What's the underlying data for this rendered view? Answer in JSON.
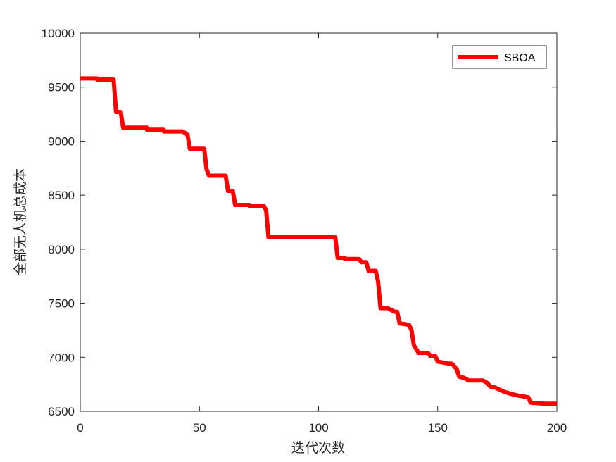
{
  "chart_data": {
    "type": "line",
    "xlabel": "迭代次数",
    "ylabel": "全部无人机总成本",
    "xlim": [
      0,
      200
    ],
    "ylim": [
      6500,
      10000
    ],
    "xticks": [
      0,
      50,
      100,
      150,
      200
    ],
    "yticks": [
      6500,
      7000,
      7500,
      8000,
      8500,
      9000,
      9500,
      10000
    ],
    "x_tick_labels": [
      "0",
      "50",
      "100",
      "150",
      "200"
    ],
    "y_tick_labels": [
      "6500",
      "7000",
      "7500",
      "8000",
      "8500",
      "9000",
      "9500",
      "10000"
    ],
    "grid": false,
    "legend_position": "top-right",
    "series": [
      {
        "name": "SBOA",
        "color": "#ff0000",
        "x": [
          0,
          7,
          7,
          14,
          15,
          17,
          18,
          28,
          28,
          35,
          35,
          43,
          45,
          46,
          52,
          53,
          54,
          61,
          62,
          64,
          65,
          71,
          71,
          77,
          78,
          79,
          107,
          108,
          111,
          111,
          117,
          118,
          120,
          121,
          124,
          125,
          126,
          129,
          132,
          133,
          134,
          138,
          139,
          140,
          142,
          146,
          147,
          149,
          150,
          155,
          156,
          158,
          159,
          161,
          163,
          169,
          171,
          172,
          174,
          176,
          178,
          181,
          184,
          188,
          189,
          192,
          195,
          200
        ],
        "y": [
          9580,
          9580,
          9570,
          9570,
          9270,
          9270,
          9125,
          9125,
          9105,
          9105,
          9090,
          9090,
          9060,
          8930,
          8930,
          8740,
          8680,
          8680,
          8540,
          8540,
          8410,
          8410,
          8400,
          8400,
          8360,
          8110,
          8110,
          7920,
          7920,
          7910,
          7910,
          7880,
          7880,
          7800,
          7800,
          7700,
          7455,
          7455,
          7420,
          7420,
          7315,
          7300,
          7250,
          7110,
          7040,
          7040,
          7010,
          7010,
          6960,
          6940,
          6940,
          6890,
          6820,
          6810,
          6785,
          6785,
          6760,
          6730,
          6720,
          6700,
          6680,
          6660,
          6645,
          6630,
          6580,
          6575,
          6570,
          6570
        ]
      }
    ]
  }
}
